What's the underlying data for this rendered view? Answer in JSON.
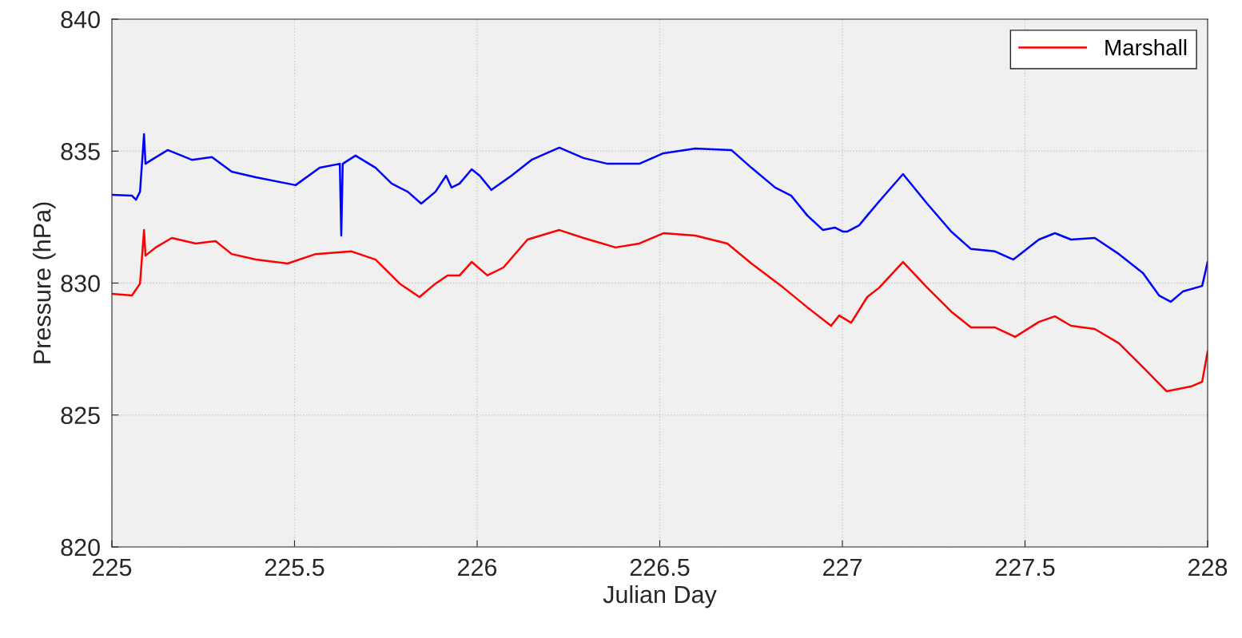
{
  "chart_data": {
    "type": "line",
    "xlabel": "Julian Day",
    "ylabel": "Pressure (hPa)",
    "xlim": [
      225,
      228
    ],
    "ylim": [
      820,
      840
    ],
    "xticks": [
      225,
      225.5,
      226,
      226.5,
      227,
      227.5,
      228
    ],
    "yticks": [
      820,
      825,
      830,
      835,
      840
    ],
    "grid": true,
    "legend": "top right",
    "series": [
      {
        "name": "Marshall",
        "color": "#ff0000",
        "x": [
          225.0,
          225.055,
          225.077,
          225.088,
          225.092,
          225.12,
          225.164,
          225.23,
          225.284,
          225.328,
          225.394,
          225.481,
          225.558,
          225.656,
          225.722,
          225.788,
          225.842,
          225.886,
          225.919,
          225.952,
          225.985,
          226.028,
          226.072,
          226.138,
          226.225,
          226.291,
          226.379,
          226.444,
          226.51,
          226.597,
          226.685,
          226.751,
          226.838,
          226.904,
          226.969,
          226.991,
          227.024,
          227.068,
          227.101,
          227.166,
          227.232,
          227.298,
          227.352,
          227.418,
          227.473,
          227.538,
          227.582,
          227.626,
          227.691,
          227.757,
          227.823,
          227.888,
          227.954,
          227.985,
          228.0
        ],
        "values": [
          829.59,
          829.53,
          829.98,
          832.01,
          831.04,
          831.35,
          831.71,
          831.5,
          831.59,
          831.1,
          830.89,
          830.74,
          831.1,
          831.2,
          830.89,
          829.98,
          829.47,
          829.98,
          830.29,
          830.29,
          830.8,
          830.29,
          830.59,
          831.65,
          832.01,
          831.71,
          831.35,
          831.5,
          831.89,
          831.8,
          831.5,
          830.74,
          829.83,
          829.08,
          828.38,
          828.77,
          828.5,
          829.47,
          829.83,
          830.8,
          829.83,
          828.92,
          828.32,
          828.32,
          827.96,
          828.53,
          828.74,
          828.38,
          828.26,
          827.72,
          826.81,
          825.9,
          826.08,
          826.26,
          827.41
        ]
      },
      {
        "color": "#0000ff",
        "x": [
          225.0,
          225.055,
          225.066,
          225.077,
          225.088,
          225.092,
          225.109,
          225.153,
          225.219,
          225.274,
          225.328,
          225.394,
          225.503,
          225.569,
          225.624,
          225.628,
          225.632,
          225.667,
          225.722,
          225.766,
          225.81,
          225.847,
          225.886,
          225.915,
          225.93,
          225.952,
          225.985,
          226.007,
          226.039,
          226.094,
          226.149,
          226.225,
          226.291,
          226.357,
          226.444,
          226.51,
          226.597,
          226.696,
          226.751,
          226.816,
          226.86,
          226.904,
          226.947,
          226.98,
          227.002,
          227.013,
          227.046,
          227.068,
          227.101,
          227.166,
          227.232,
          227.298,
          227.352,
          227.418,
          227.468,
          227.538,
          227.582,
          227.626,
          227.691,
          227.757,
          227.823,
          227.867,
          227.899,
          227.932,
          227.985,
          228.0
        ],
        "values": [
          833.34,
          833.31,
          833.16,
          833.46,
          835.64,
          834.52,
          834.67,
          835.04,
          834.67,
          834.77,
          834.22,
          834.01,
          833.71,
          834.37,
          834.52,
          831.8,
          834.52,
          834.83,
          834.37,
          833.77,
          833.46,
          833.01,
          833.46,
          834.07,
          833.62,
          833.77,
          834.31,
          834.07,
          833.53,
          834.07,
          834.67,
          835.13,
          834.74,
          834.52,
          834.52,
          834.92,
          835.1,
          835.04,
          834.37,
          833.62,
          833.31,
          832.56,
          832.01,
          832.1,
          831.95,
          831.95,
          832.19,
          832.56,
          833.1,
          834.13,
          833.01,
          831.95,
          831.29,
          831.2,
          830.89,
          831.65,
          831.89,
          831.65,
          831.71,
          831.1,
          830.38,
          829.53,
          829.29,
          829.68,
          829.89,
          830.8
        ]
      }
    ]
  }
}
